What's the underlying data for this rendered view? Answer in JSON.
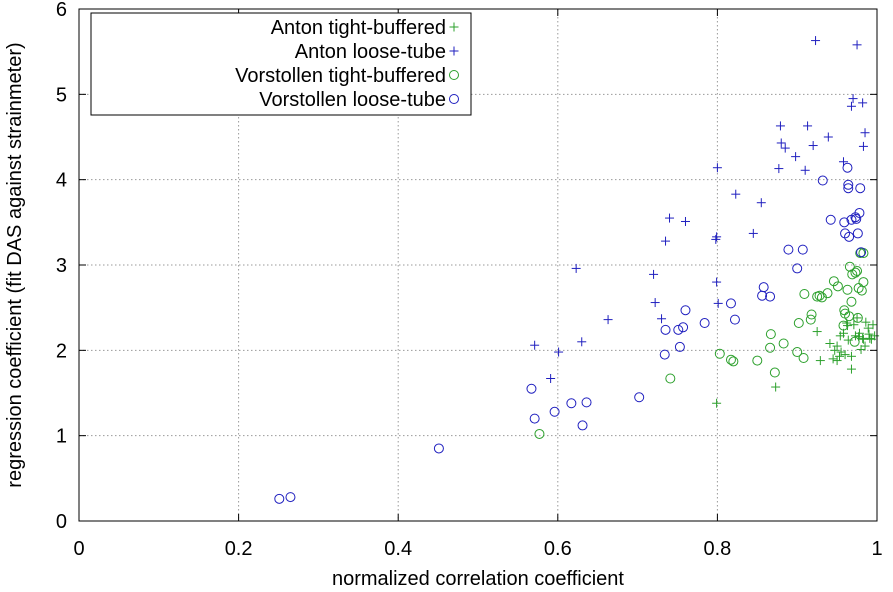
{
  "chart_data": {
    "type": "scatter",
    "xlabel": "normalized correlation coefficient",
    "ylabel": "regression coefficient (fit DAS against strainmeter)",
    "xlim": [
      0,
      1
    ],
    "ylim": [
      0,
      6
    ],
    "xticks": [
      0,
      0.2,
      0.4,
      0.6,
      0.8,
      1
    ],
    "yticks": [
      0,
      1,
      2,
      3,
      4,
      5,
      6
    ],
    "xtick_labels": [
      "0",
      "0.2",
      "0.4",
      "0.6",
      "0.8",
      "1"
    ],
    "ytick_labels": [
      "0",
      "1",
      "2",
      "3",
      "4",
      "5",
      "6"
    ],
    "grid": true,
    "legend_position": "top-left",
    "series": [
      {
        "name": "Anton tight-buffered",
        "marker": "plus",
        "color": "#2ca02c",
        "points": [
          [
            0.799,
            1.38
          ],
          [
            0.873,
            1.57
          ],
          [
            0.925,
            2.22
          ],
          [
            0.929,
            1.88
          ],
          [
            0.941,
            2.08
          ],
          [
            0.945,
            1.9
          ],
          [
            0.95,
            1.88
          ],
          [
            0.95,
            2.05
          ],
          [
            0.953,
            1.93
          ],
          [
            0.954,
            2.17
          ],
          [
            0.96,
            1.95
          ],
          [
            0.963,
            2.29
          ],
          [
            0.964,
            2.12
          ],
          [
            0.968,
            1.78
          ],
          [
            0.968,
            1.93
          ],
          [
            0.971,
            2.3
          ],
          [
            0.973,
            2.17
          ],
          [
            0.975,
            2.38
          ],
          [
            0.977,
            2.16
          ],
          [
            0.98,
            2.01
          ],
          [
            0.982,
            2.14
          ],
          [
            0.983,
            2.13
          ],
          [
            0.985,
            2.05
          ],
          [
            0.986,
            2.33
          ],
          [
            0.99,
            2.19
          ],
          [
            0.993,
            2.13
          ],
          [
            0.995,
            2.3
          ],
          [
            0.997,
            2.17
          ],
          [
            0.991,
            2.14
          ],
          [
            0.958,
            2.2
          ],
          [
            0.947,
            2.0
          ],
          [
            0.962,
            2.32
          ],
          [
            0.955,
            1.98
          ],
          [
            0.978,
            2.2
          ],
          [
            0.989,
            2.26
          ]
        ]
      },
      {
        "name": "Anton loose-tube",
        "marker": "plus",
        "color": "#1f1fbf",
        "points": [
          [
            0.571,
            2.06
          ],
          [
            0.591,
            1.67
          ],
          [
            0.601,
            1.98
          ],
          [
            0.623,
            2.96
          ],
          [
            0.63,
            2.1
          ],
          [
            0.663,
            2.36
          ],
          [
            0.722,
            2.56
          ],
          [
            0.72,
            2.89
          ],
          [
            0.73,
            2.37
          ],
          [
            0.735,
            3.28
          ],
          [
            0.74,
            3.55
          ],
          [
            0.76,
            3.51
          ],
          [
            0.798,
            3.3
          ],
          [
            0.799,
            3.33
          ],
          [
            0.799,
            2.8
          ],
          [
            0.801,
            2.55
          ],
          [
            0.8,
            4.14
          ],
          [
            0.823,
            3.83
          ],
          [
            0.845,
            3.37
          ],
          [
            0.855,
            3.73
          ],
          [
            0.877,
            4.13
          ],
          [
            0.879,
            4.63
          ],
          [
            0.88,
            4.43
          ],
          [
            0.885,
            4.37
          ],
          [
            0.898,
            4.27
          ],
          [
            0.91,
            4.11
          ],
          [
            0.913,
            4.63
          ],
          [
            0.92,
            4.4
          ],
          [
            0.923,
            5.63
          ],
          [
            0.939,
            4.5
          ],
          [
            0.958,
            4.21
          ],
          [
            0.968,
            4.86
          ],
          [
            0.97,
            4.95
          ],
          [
            0.975,
            5.58
          ],
          [
            0.982,
            4.9
          ],
          [
            0.985,
            4.55
          ],
          [
            0.983,
            4.39
          ]
        ]
      },
      {
        "name": "Vorstollen tight-buffered",
        "marker": "circle",
        "color": "#2ca02c",
        "points": [
          [
            0.577,
            1.02
          ],
          [
            0.741,
            1.67
          ],
          [
            0.803,
            1.96
          ],
          [
            0.817,
            1.89
          ],
          [
            0.82,
            1.87
          ],
          [
            0.85,
            1.88
          ],
          [
            0.866,
            2.03
          ],
          [
            0.867,
            2.19
          ],
          [
            0.872,
            1.74
          ],
          [
            0.883,
            2.08
          ],
          [
            0.9,
            1.98
          ],
          [
            0.902,
            2.32
          ],
          [
            0.908,
            1.91
          ],
          [
            0.909,
            2.66
          ],
          [
            0.917,
            2.36
          ],
          [
            0.918,
            2.42
          ],
          [
            0.925,
            2.63
          ],
          [
            0.928,
            2.64
          ],
          [
            0.931,
            2.62
          ],
          [
            0.938,
            2.67
          ],
          [
            0.946,
            2.81
          ],
          [
            0.951,
            2.75
          ],
          [
            0.958,
            2.29
          ],
          [
            0.959,
            2.47
          ],
          [
            0.96,
            2.43
          ],
          [
            0.963,
            2.71
          ],
          [
            0.966,
            2.98
          ],
          [
            0.968,
            2.57
          ],
          [
            0.969,
            2.89
          ],
          [
            0.973,
            2.91
          ],
          [
            0.975,
            2.93
          ],
          [
            0.976,
            2.38
          ],
          [
            0.977,
            2.73
          ],
          [
            0.979,
            3.14
          ],
          [
            0.981,
            2.7
          ],
          [
            0.983,
            2.8
          ],
          [
            0.983,
            3.14
          ],
          [
            0.965,
            2.4
          ],
          [
            0.972,
            2.1
          ]
        ]
      },
      {
        "name": "Vorstollen loose-tube",
        "marker": "circle",
        "color": "#1f1fbf",
        "points": [
          [
            0.251,
            0.26
          ],
          [
            0.265,
            0.28
          ],
          [
            0.451,
            0.85
          ],
          [
            0.567,
            1.55
          ],
          [
            0.571,
            1.2
          ],
          [
            0.596,
            1.28
          ],
          [
            0.617,
            1.38
          ],
          [
            0.631,
            1.12
          ],
          [
            0.636,
            1.39
          ],
          [
            0.702,
            1.45
          ],
          [
            0.734,
            1.95
          ],
          [
            0.735,
            2.24
          ],
          [
            0.751,
            2.24
          ],
          [
            0.753,
            2.04
          ],
          [
            0.757,
            2.27
          ],
          [
            0.76,
            2.47
          ],
          [
            0.784,
            2.32
          ],
          [
            0.817,
            2.55
          ],
          [
            0.822,
            2.36
          ],
          [
            0.856,
            2.64
          ],
          [
            0.858,
            2.74
          ],
          [
            0.866,
            2.63
          ],
          [
            0.889,
            3.18
          ],
          [
            0.9,
            2.96
          ],
          [
            0.907,
            3.18
          ],
          [
            0.932,
            3.99
          ],
          [
            0.942,
            3.53
          ],
          [
            0.959,
            3.5
          ],
          [
            0.96,
            3.37
          ],
          [
            0.963,
            4.14
          ],
          [
            0.964,
            3.94
          ],
          [
            0.964,
            3.9
          ],
          [
            0.965,
            3.33
          ],
          [
            0.968,
            3.53
          ],
          [
            0.973,
            3.56
          ],
          [
            0.974,
            3.54
          ],
          [
            0.976,
            3.37
          ],
          [
            0.978,
            3.61
          ],
          [
            0.979,
            3.9
          ],
          [
            0.98,
            3.15
          ]
        ]
      }
    ]
  }
}
